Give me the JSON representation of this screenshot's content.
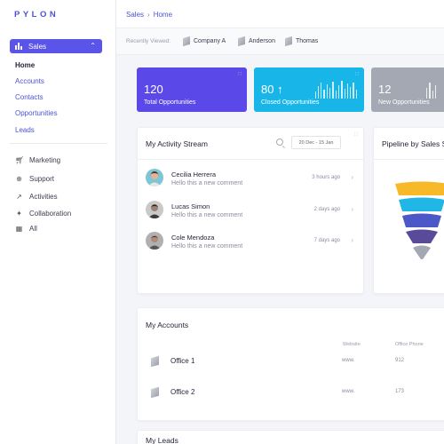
{
  "app": {
    "logo": "PYLON"
  },
  "sidebar": {
    "section_label": "Sales",
    "sub_items": [
      "Home",
      "Accounts",
      "Contacts",
      "Opportunities",
      "Leads"
    ],
    "nav_items": [
      {
        "label": "Marketing",
        "icon": "cart-icon"
      },
      {
        "label": "Support",
        "icon": "globe-icon"
      },
      {
        "label": "Activities",
        "icon": "activity-icon"
      },
      {
        "label": "Collaboration",
        "icon": "collaboration-icon"
      },
      {
        "label": "All",
        "icon": "grid-icon"
      }
    ]
  },
  "header": {
    "breadcrumb_root": "Sales",
    "breadcrumb_current": "Home"
  },
  "recent": {
    "label": "Recently Viewed:",
    "items": [
      "Company A",
      "Anderson",
      "Thomas"
    ]
  },
  "stats": [
    {
      "value": "120",
      "label": "Total Opportunities",
      "color": "#5a49e8"
    },
    {
      "value": "80 ↑",
      "label": "Closed Opportunities",
      "color": "#18b6e8"
    },
    {
      "value": "12",
      "label": "New Opportunities",
      "color": "#a3a8b3"
    }
  ],
  "activity": {
    "title": "My Activity Stream",
    "date_range": "20 Dec - 15 Jan",
    "rows": [
      {
        "name": "Cecilia Herrera",
        "message": "Hello this a new comment",
        "time": "3 hours ago"
      },
      {
        "name": "Lucas Simon",
        "message": "Hello this a new comment",
        "time": "2 days ago"
      },
      {
        "name": "Cole Mendoza",
        "message": "Hello this a new comment",
        "time": "7 days ago"
      }
    ]
  },
  "pipeline": {
    "title": "Pipeline by Sales S",
    "colors": [
      "#f7b927",
      "#20b6e6",
      "#4c57c8",
      "#5a4b9a",
      "#a3a8b3"
    ]
  },
  "accounts": {
    "title": "My Accounts",
    "col_website": "Website",
    "col_phone": "Office Phone",
    "rows": [
      {
        "name": "Office 1",
        "website": "www.",
        "phone": "912"
      },
      {
        "name": "Office 2",
        "website": "www.",
        "phone": "173"
      }
    ]
  },
  "leads": {
    "title": "My Leads"
  }
}
